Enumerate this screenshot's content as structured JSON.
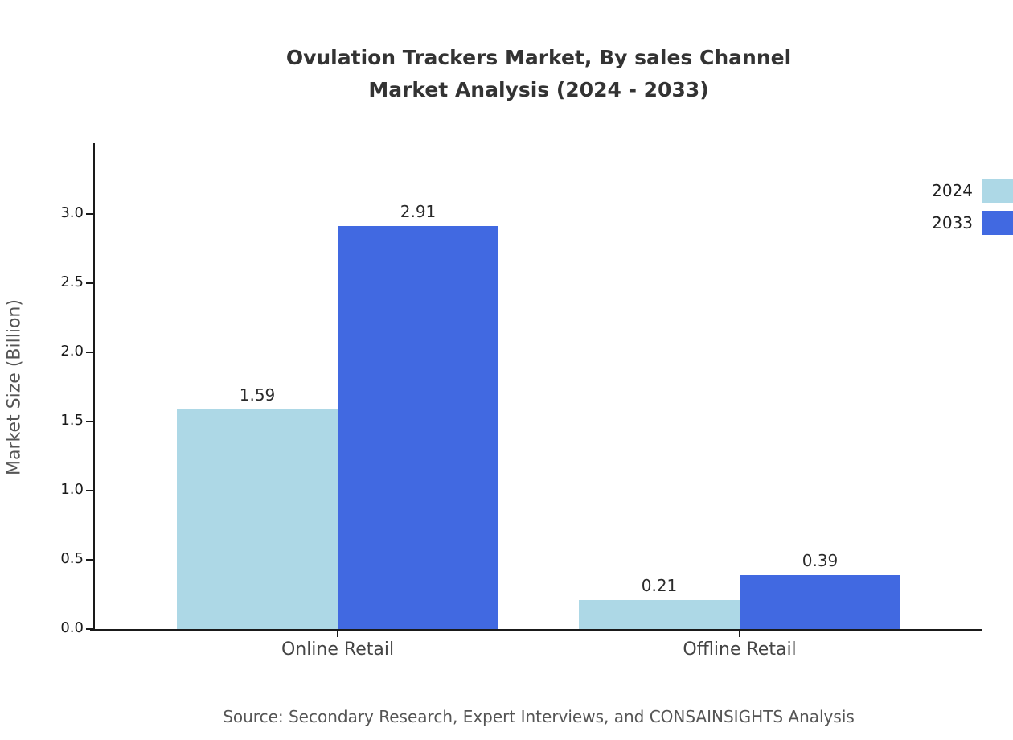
{
  "title": {
    "line1": "Ovulation Trackers Market, By sales Channel",
    "line2": "Market Analysis (2024 - 2033)"
  },
  "source": "Source: Secondary Research, Expert Interviews, and CONSAINSIGHTS Analysis",
  "chart_data": {
    "type": "bar",
    "title": "Ovulation Trackers Market, By sales Channel Market Analysis (2024 - 2033)",
    "categories": [
      "Online Retail",
      "Offline Retail"
    ],
    "series": [
      {
        "name": "2024",
        "color": "#add8e6",
        "values": [
          1.59,
          0.21
        ]
      },
      {
        "name": "2033",
        "color": "#4169e1",
        "values": [
          2.91,
          0.39
        ]
      }
    ],
    "xlabel": "",
    "ylabel": "Market Size (Billion)",
    "ylim": [
      0,
      3.5
    ],
    "yticks": [
      "0.0",
      "0.5",
      "1.0",
      "1.5",
      "2.0",
      "2.5",
      "3.0"
    ],
    "grid": false,
    "legend_position": "top-right",
    "value_labels": [
      [
        "1.59",
        "0.21"
      ],
      [
        "2.91",
        "0.39"
      ]
    ]
  }
}
